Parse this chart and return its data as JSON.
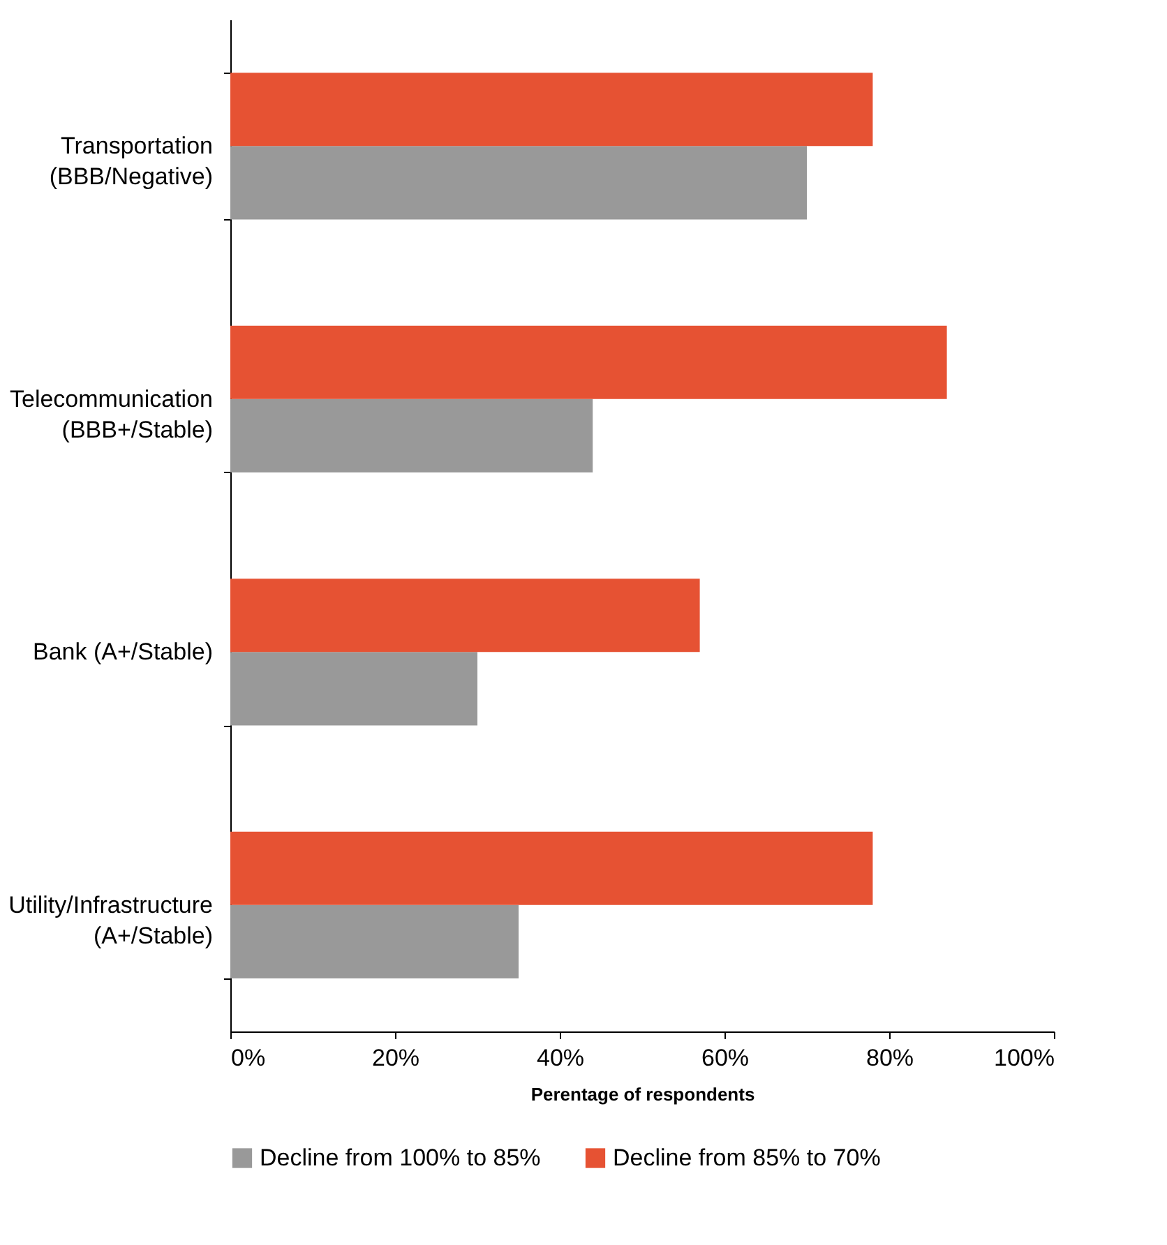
{
  "chart_data": {
    "type": "bar",
    "orientation": "horizontal",
    "xlabel": "Perentage of respondents",
    "categories": [
      "Transportation\n(BBB/Negative)",
      "Telecommunication\n(BBB+/Stable)",
      "Bank (A+/Stable)",
      "Utility/Infrastructure\n(A+/Stable)"
    ],
    "series": [
      {
        "name": "Decline from 100% to 85%",
        "color": "#999999",
        "values": [
          70,
          44,
          30,
          35
        ]
      },
      {
        "name": "Decline from 85% to 70%",
        "color": "#e65233",
        "values": [
          78,
          87,
          57,
          78
        ]
      }
    ],
    "xlim": [
      0,
      100
    ],
    "xticks": [
      {
        "value": 0,
        "label": "0%"
      },
      {
        "value": 20,
        "label": "20%"
      },
      {
        "value": 40,
        "label": "40%"
      },
      {
        "value": 60,
        "label": "60%"
      },
      {
        "value": 80,
        "label": "80%"
      },
      {
        "value": 100,
        "label": "100%"
      }
    ],
    "grid": false,
    "legend": "bottom"
  }
}
